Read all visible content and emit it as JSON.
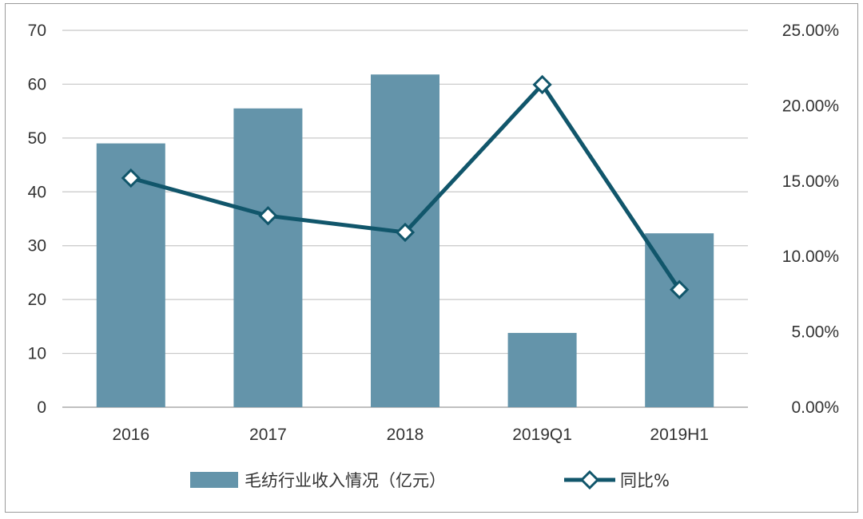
{
  "chart_data": {
    "type": "bar",
    "categories": [
      "2016",
      "2017",
      "2018",
      "2019Q1",
      "2019H1"
    ],
    "series": [
      {
        "name": "毛纺行业收入情况（亿元）",
        "type": "bar",
        "axis": "left",
        "color": "#6494aa",
        "values": [
          49,
          55.5,
          61.8,
          13.8,
          32.3
        ]
      },
      {
        "name": "同比%",
        "type": "line",
        "axis": "right",
        "color": "#11566b",
        "marker": "diamond",
        "values": [
          0.152,
          0.127,
          0.116,
          0.214,
          0.078
        ]
      }
    ],
    "left_axis": {
      "ylim": [
        0,
        70
      ],
      "ticks": [
        "0",
        "10",
        "20",
        "30",
        "40",
        "50",
        "60",
        "70"
      ]
    },
    "right_axis": {
      "ylim": [
        0,
        0.25
      ],
      "ticks": [
        "0.00%",
        "5.00%",
        "10.00%",
        "15.00%",
        "20.00%",
        "25.00%"
      ]
    },
    "grid": true,
    "legend_position": "bottom"
  }
}
